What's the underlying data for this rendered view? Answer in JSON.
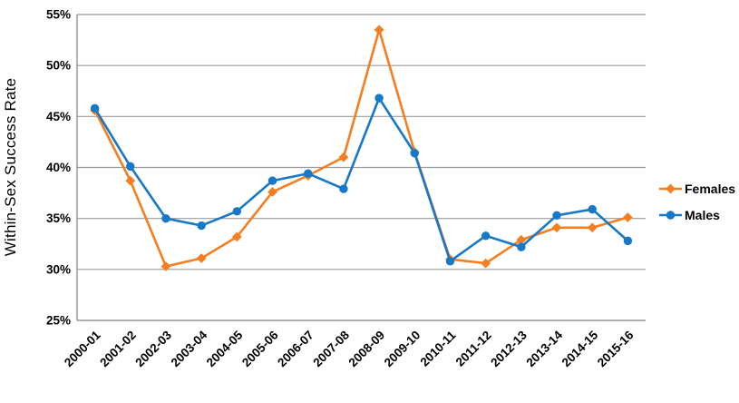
{
  "chart_data": {
    "type": "line",
    "title": "",
    "ylabel": "Within-Sex Success Rate",
    "xlabel": "",
    "categories": [
      "2000-01",
      "2001-02",
      "2002-03",
      "2003-04",
      "2004-05",
      "2005-06",
      "2006-07",
      "2007-08",
      "2008-09",
      "2009-10",
      "2010-11",
      "2011-12",
      "2012-13",
      "2013-14",
      "2014-15",
      "2015-16"
    ],
    "series": [
      {
        "name": "Females",
        "color": "#F57E20",
        "marker": "diamond",
        "values": [
          45.6,
          38.7,
          30.3,
          31.1,
          33.2,
          37.6,
          39.2,
          41.0,
          53.5,
          41.5,
          31.0,
          30.6,
          32.9,
          34.1,
          34.1,
          35.1
        ]
      },
      {
        "name": "Males",
        "color": "#1878C8",
        "marker": "circle",
        "values": [
          45.8,
          40.1,
          35.0,
          34.3,
          35.7,
          38.7,
          39.4,
          37.9,
          46.8,
          41.4,
          30.8,
          33.3,
          32.2,
          35.3,
          35.9,
          32.8
        ]
      }
    ],
    "ylim": [
      25,
      55
    ],
    "ytick_step": 5,
    "ytick_suffix": "%",
    "ytick_labels": [
      "25%",
      "30%",
      "35%",
      "40%",
      "45%",
      "50%",
      "55%"
    ],
    "grid": true,
    "legend_position": "right",
    "legend_labels": [
      "Females",
      "Males"
    ],
    "colors": {
      "females": "#F57E20",
      "males": "#1878C8",
      "gridline": "#9B9B9B",
      "axis": "#808080",
      "text": "#000000"
    }
  }
}
